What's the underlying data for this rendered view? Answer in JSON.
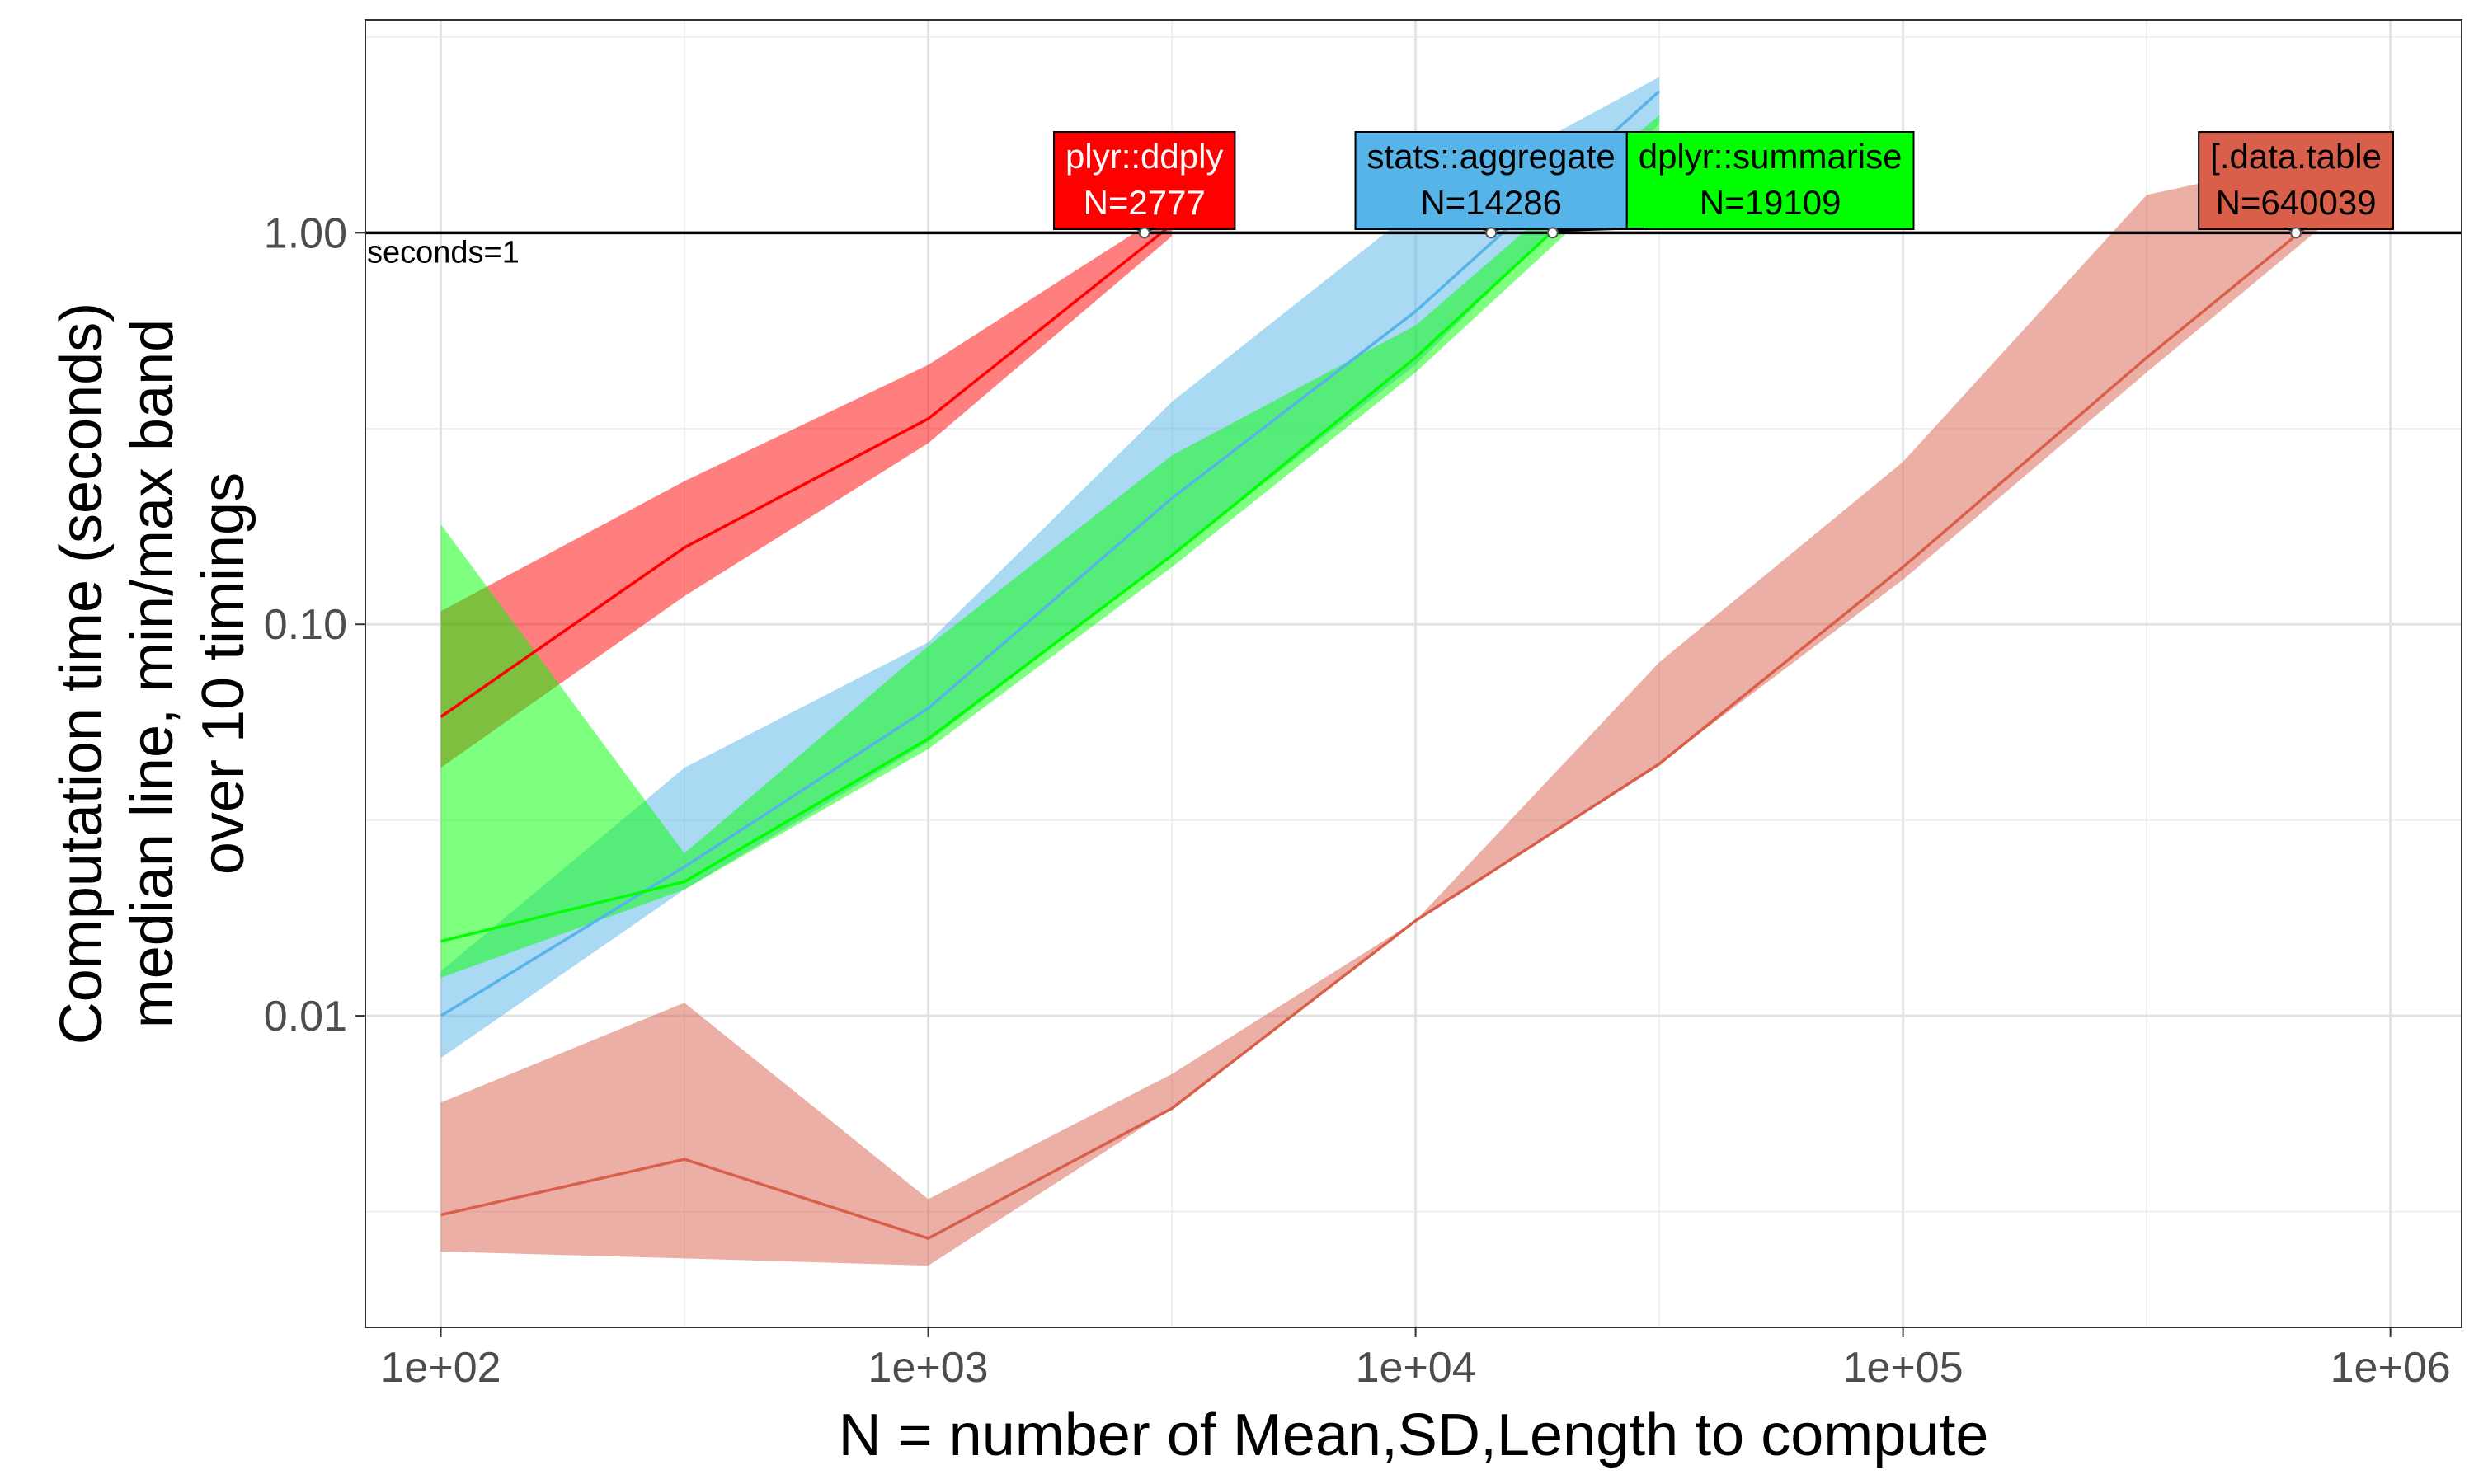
{
  "chart_data": {
    "type": "line",
    "title": "",
    "xlabel": "N = number of Mean,SD,Length to compute",
    "ylabel_lines": [
      "Computation time (seconds)",
      "median line, min/max band",
      "over 10 timings"
    ],
    "x_scale": "log10",
    "y_scale": "log10",
    "xlim": [
      70,
      1400000
    ],
    "ylim": [
      0.0016,
      3.5
    ],
    "x_ticks": [
      {
        "value": 100,
        "label": "1e+02"
      },
      {
        "value": 1000,
        "label": "1e+03"
      },
      {
        "value": 10000,
        "label": "1e+04"
      },
      {
        "value": 100000,
        "label": "1e+05"
      },
      {
        "value": 1000000,
        "label": "1e+06"
      }
    ],
    "y_ticks": [
      {
        "value": 0.01,
        "label": "0.01"
      },
      {
        "value": 0.1,
        "label": "0.10"
      },
      {
        "value": 1,
        "label": "1.00"
      }
    ],
    "grid": true,
    "legend": "none",
    "reference_line": {
      "y": 1,
      "label": "seconds=1"
    },
    "series": [
      {
        "name": "plyr::ddply",
        "color": "#ff0000",
        "x": [
          100,
          316,
          1000,
          3162
        ],
        "median": [
          0.058,
          0.157,
          0.335,
          1.05
        ],
        "min": [
          0.043,
          0.118,
          0.29,
          0.98
        ],
        "max": [
          0.108,
          0.232,
          0.46,
          1.15
        ],
        "label_text": "N=2777",
        "label_x": 2777
      },
      {
        "name": "stats::aggregate",
        "color": "#56b4e9",
        "x": [
          100,
          316,
          1000,
          3162,
          10000,
          31623
        ],
        "median": [
          0.01,
          0.024,
          0.061,
          0.21,
          0.63,
          2.3
        ],
        "min": [
          0.0078,
          0.021,
          0.05,
          0.15,
          0.46,
          1.9
        ],
        "max": [
          0.013,
          0.043,
          0.09,
          0.37,
          1.15,
          2.5
        ],
        "label_text": "N=14286",
        "label_x": 14286
      },
      {
        "name": "dplyr::summarise",
        "color": "#00ff00",
        "x": [
          100,
          316,
          1000,
          3162,
          10000,
          31623
        ],
        "median": [
          0.0155,
          0.022,
          0.051,
          0.15,
          0.48,
          1.8
        ],
        "min": [
          0.0125,
          0.021,
          0.048,
          0.14,
          0.44,
          1.65
        ],
        "max": [
          0.18,
          0.026,
          0.088,
          0.27,
          0.58,
          2.0
        ],
        "label_text": "N=19109",
        "label_x": 19109
      },
      {
        "name": "[.data.table",
        "color": "#d95f4b",
        "x": [
          100,
          316,
          1000,
          3162,
          10000,
          31623,
          100000,
          316228,
          1000000
        ],
        "median": [
          0.0031,
          0.0043,
          0.0027,
          0.0058,
          0.0175,
          0.044,
          0.14,
          0.48,
          1.55
        ],
        "min": [
          0.0025,
          0.0024,
          0.0023,
          0.0058,
          0.0175,
          0.044,
          0.13,
          0.44,
          1.45
        ],
        "max": [
          0.006,
          0.0108,
          0.0034,
          0.0071,
          0.0175,
          0.08,
          0.26,
          1.25,
          1.7
        ],
        "label_text": "N=640039",
        "label_x": 640039
      }
    ]
  }
}
